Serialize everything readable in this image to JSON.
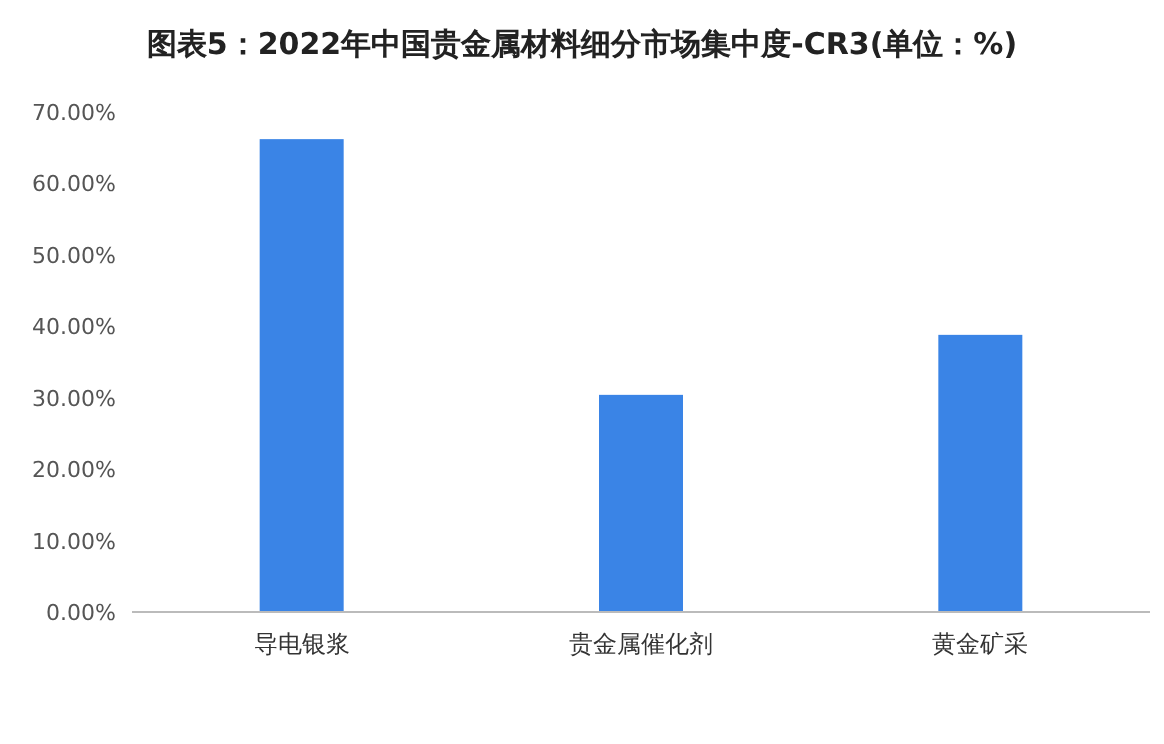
{
  "chart_data": {
    "type": "bar",
    "title": "图表5：2022年中国贵金属材料细分市场集中度-CR3(单位：%)",
    "categories": [
      "导电银浆",
      "贵金属催化剂",
      "黄金矿采"
    ],
    "values": [
      66.2,
      30.4,
      38.8
    ],
    "color": "#3a84e6",
    "ylim": [
      0,
      70
    ],
    "yticks": [
      {
        "value": 0,
        "label": "0.00%"
      },
      {
        "value": 10,
        "label": "10.00%"
      },
      {
        "value": 20,
        "label": "20.00%"
      },
      {
        "value": 30,
        "label": "30.00%"
      },
      {
        "value": 40,
        "label": "40.00%"
      },
      {
        "value": 50,
        "label": "50.00%"
      },
      {
        "value": 60,
        "label": "60.00%"
      },
      {
        "value": 70,
        "label": "70.00%"
      }
    ],
    "grid": false,
    "legend": false
  }
}
